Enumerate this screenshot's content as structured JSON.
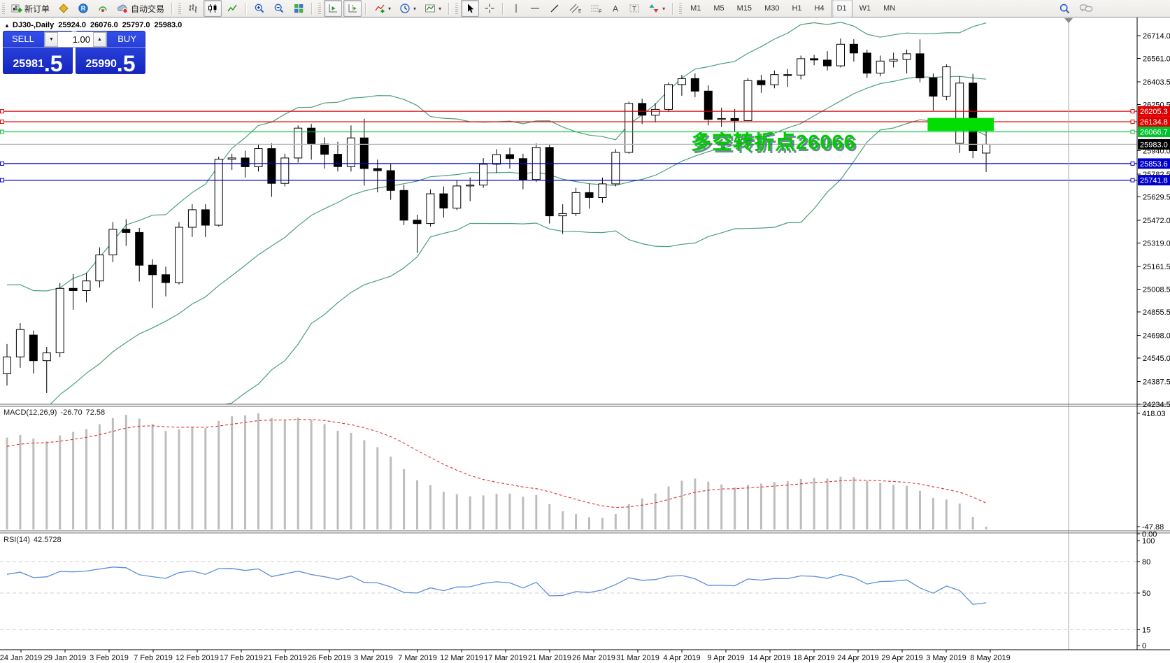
{
  "toolbar": {
    "new_order_label": "新订单",
    "autotrading_label": "自动交易",
    "timeframes": [
      "M1",
      "M5",
      "M15",
      "M30",
      "H1",
      "H4",
      "D1",
      "W1",
      "MN"
    ],
    "active_timeframe": "D1",
    "icon_names": [
      "new-order-icon",
      "quotes-icon",
      "community-icon",
      "signals-icon",
      "autotrading-icon",
      "bar-chart-icon",
      "candlestick-icon",
      "line-chart-icon",
      "zoom-in-icon",
      "zoom-out-icon",
      "tile-windows-icon",
      "auto-scroll-icon",
      "chart-shift-icon",
      "indicators-icon",
      "periods-icon",
      "templates-icon",
      "cursor-icon",
      "crosshair-icon",
      "vertical-line-icon",
      "horizontal-line-icon",
      "trendline-icon",
      "channel-icon",
      "fibonacci-icon",
      "text-icon",
      "label-icon",
      "shapes-icon",
      "search-icon",
      "chat-icon"
    ]
  },
  "header": {
    "symbol_period": "DJ30-,Daily",
    "open": "25924.0",
    "high": "26076.0",
    "low": "25797.0",
    "close": "25983.0"
  },
  "trade_panel": {
    "sell_label": "SELL",
    "buy_label": "BUY",
    "volume": "1.00",
    "sell_price": "25981",
    "sell_price_frac": ".5",
    "buy_price": "25990",
    "buy_price_frac": ".5"
  },
  "annotation": {
    "text": "多空转折点26066",
    "color": "#00cc00"
  },
  "price_axis": {
    "ticks": [
      "26714.0",
      "26561.0",
      "26403.5",
      "26250.5",
      "25940.0",
      "25782.5",
      "25629.5",
      "25472.0",
      "25319.0",
      "25161.5",
      "25008.5",
      "24855.5",
      "24698.0",
      "24545.0",
      "24387.5",
      "24234.5"
    ],
    "badges": [
      {
        "value": "26205.3",
        "color": "#dd0000",
        "text": "#ffffff"
      },
      {
        "value": "26134.8",
        "color": "#dd0000",
        "text": "#ffffff"
      },
      {
        "value": "26066.7",
        "color": "#00c22d",
        "text": "#ffffff"
      },
      {
        "value": "25983.0",
        "color": "#000000",
        "text": "#ffffff"
      },
      {
        "value": "25853.6",
        "color": "#0000cc",
        "text": "#ffffff"
      },
      {
        "value": "25741.8",
        "color": "#0000cc",
        "text": "#ffffff"
      }
    ]
  },
  "levels": [
    {
      "price": 26205.3,
      "color": "#dd0000",
      "style": "solid"
    },
    {
      "price": 26134.8,
      "color": "#dd0000",
      "style": "solid"
    },
    {
      "price": 26066.7,
      "color": "#00c22d",
      "style": "solid"
    },
    {
      "price": 25983.0,
      "color": "#b8b8b8",
      "style": "bid"
    },
    {
      "price": 25853.6,
      "color": "#0000cc",
      "style": "solid"
    },
    {
      "price": 25741.8,
      "color": "#0000cc",
      "style": "solid"
    }
  ],
  "highlight": {
    "price_top": 26160,
    "price_bottom": 26073,
    "from_bar": 70,
    "to_bar": 74,
    "color": "#00dd00"
  },
  "indicators": {
    "macd": {
      "label": "MACD(12,26,9)",
      "value": "-26.70",
      "signal_value": "72.58",
      "axis_labels": [
        "418.03",
        "0.00",
        "-47.88"
      ],
      "histogram_color": "#bdbdbd",
      "signal_color": "#e03030"
    },
    "rsi": {
      "label": "RSI(14)",
      "value": "42.5728",
      "axis_labels": [
        "100",
        "80",
        "50",
        "15",
        "0"
      ],
      "levels": [
        80,
        50,
        15
      ],
      "line_color": "#5a8edc"
    }
  },
  "date_axis": [
    "24 Jan 2019",
    "29 Jan 2019",
    "3 Feb 2019",
    "7 Feb 2019",
    "12 Feb 2019",
    "17 Feb 2019",
    "21 Feb 2019",
    "26 Feb 2019",
    "3 Mar 2019",
    "7 Mar 2019",
    "12 Mar 2019",
    "17 Mar 2019",
    "21 Mar 2019",
    "26 Mar 2019",
    "31 Mar 2019",
    "4 Apr 2019",
    "9 Apr 2019",
    "14 Apr 2019",
    "18 Apr 2019",
    "24 Apr 2019",
    "29 Apr 2019",
    "3 May 2019",
    "8 May 2019"
  ],
  "chart_data": {
    "type": "candlestick",
    "symbol": "DJ30",
    "period": "Daily",
    "y_axis": {
      "min": 24180,
      "max": 26780
    },
    "bollinger": {
      "period": 20,
      "deviation": 2,
      "color": "#4aa077"
    },
    "dates": [
      "24 Jan",
      "25 Jan",
      "28 Jan",
      "29 Jan",
      "30 Jan",
      "31 Jan",
      "1 Feb",
      "4 Feb",
      "5 Feb",
      "6 Feb",
      "7 Feb",
      "8 Feb",
      "11 Feb",
      "12 Feb",
      "13 Feb",
      "14 Feb",
      "15 Feb",
      "18 Feb",
      "19 Feb",
      "20 Feb",
      "21 Feb",
      "22 Feb",
      "25 Feb",
      "26 Feb",
      "27 Feb",
      "28 Feb",
      "1 Mar",
      "4 Mar",
      "5 Mar",
      "6 Mar",
      "7 Mar",
      "8 Mar",
      "11 Mar",
      "12 Mar",
      "13 Mar",
      "14 Mar",
      "15 Mar",
      "18 Mar",
      "19 Mar",
      "20 Mar",
      "21 Mar",
      "22 Mar",
      "25 Mar",
      "26 Mar",
      "27 Mar",
      "28 Mar",
      "29 Mar",
      "1 Apr",
      "2 Apr",
      "3 Apr",
      "4 Apr",
      "5 Apr",
      "8 Apr",
      "9 Apr",
      "10 Apr",
      "11 Apr",
      "12 Apr",
      "15 Apr",
      "16 Apr",
      "17 Apr",
      "18 Apr",
      "19 Apr",
      "22 Apr",
      "23 Apr",
      "24 Apr",
      "25 Apr",
      "26 Apr",
      "29 Apr",
      "30 Apr",
      "1 May",
      "2 May",
      "3 May",
      "6 May",
      "7 May",
      "8 May"
    ],
    "ohlc": [
      [
        24440,
        24640,
        24360,
        24553
      ],
      [
        24553,
        24780,
        24480,
        24737
      ],
      [
        24700,
        24730,
        24440,
        24528
      ],
      [
        24528,
        24620,
        24310,
        24580
      ],
      [
        24580,
        25050,
        24550,
        25014
      ],
      [
        25014,
        25110,
        24870,
        24999
      ],
      [
        24999,
        25120,
        24920,
        25064
      ],
      [
        25064,
        25290,
        25020,
        25239
      ],
      [
        25239,
        25460,
        25190,
        25411
      ],
      [
        25411,
        25480,
        25300,
        25390
      ],
      [
        25390,
        25420,
        25060,
        25170
      ],
      [
        25170,
        25210,
        24883,
        25106
      ],
      [
        25106,
        25160,
        24960,
        25053
      ],
      [
        25053,
        25460,
        25040,
        25425
      ],
      [
        25425,
        25580,
        25360,
        25543
      ],
      [
        25543,
        25580,
        25360,
        25439
      ],
      [
        25439,
        25900,
        25430,
        25883
      ],
      [
        25883,
        25920,
        25810,
        25891
      ],
      [
        25891,
        25940,
        25760,
        25832
      ],
      [
        25832,
        25980,
        25800,
        25954
      ],
      [
        25954,
        25990,
        25630,
        25720
      ],
      [
        25720,
        25920,
        25700,
        25891
      ],
      [
        25891,
        26110,
        25860,
        26092
      ],
      [
        26092,
        26120,
        25880,
        25985
      ],
      [
        25985,
        26030,
        25820,
        25916
      ],
      [
        25916,
        26000,
        25800,
        25833
      ],
      [
        25833,
        26110,
        25800,
        26026
      ],
      [
        26026,
        26155,
        25705,
        25820
      ],
      [
        25820,
        25880,
        25660,
        25806
      ],
      [
        25806,
        25850,
        25610,
        25673
      ],
      [
        25673,
        25710,
        25440,
        25473
      ],
      [
        25473,
        25510,
        25252,
        25450
      ],
      [
        25450,
        25680,
        25430,
        25650
      ],
      [
        25650,
        25700,
        25490,
        25554
      ],
      [
        25554,
        25740,
        25540,
        25703
      ],
      [
        25703,
        25760,
        25600,
        25709
      ],
      [
        25709,
        25890,
        25690,
        25849
      ],
      [
        25849,
        25950,
        25790,
        25914
      ],
      [
        25914,
        25960,
        25820,
        25887
      ],
      [
        25887,
        25920,
        25680,
        25746
      ],
      [
        25746,
        25990,
        25730,
        25962
      ],
      [
        25962,
        25980,
        25450,
        25502
      ],
      [
        25502,
        25580,
        25380,
        25517
      ],
      [
        25517,
        25690,
        25500,
        25658
      ],
      [
        25658,
        25720,
        25550,
        25625
      ],
      [
        25625,
        25760,
        25590,
        25717
      ],
      [
        25717,
        25950,
        25700,
        25929
      ],
      [
        25929,
        26270,
        25920,
        26258
      ],
      [
        26258,
        26290,
        26120,
        26179
      ],
      [
        26179,
        26260,
        26130,
        26218
      ],
      [
        26218,
        26400,
        26200,
        26385
      ],
      [
        26385,
        26450,
        26310,
        26425
      ],
      [
        26425,
        26460,
        26300,
        26341
      ],
      [
        26341,
        26380,
        26110,
        26151
      ],
      [
        26151,
        26230,
        26100,
        26157
      ],
      [
        26157,
        26220,
        26070,
        26143
      ],
      [
        26143,
        26430,
        26140,
        26412
      ],
      [
        26412,
        26450,
        26330,
        26384
      ],
      [
        26384,
        26480,
        26360,
        26452
      ],
      [
        26452,
        26490,
        26370,
        26449
      ],
      [
        26449,
        26580,
        26420,
        26559
      ],
      [
        26559,
        26585,
        26515,
        26550
      ],
      [
        26550,
        26610,
        26480,
        26511
      ],
      [
        26511,
        26695,
        26500,
        26656
      ],
      [
        26656,
        26690,
        26540,
        26597
      ],
      [
        26597,
        26620,
        26430,
        26462
      ],
      [
        26462,
        26580,
        26440,
        26543
      ],
      [
        26543,
        26600,
        26500,
        26554
      ],
      [
        26554,
        26620,
        26460,
        26592
      ],
      [
        26592,
        26689,
        26400,
        26430
      ],
      [
        26430,
        26460,
        26210,
        26307
      ],
      [
        26307,
        26521,
        26280,
        26504
      ],
      [
        25990,
        26440,
        25925,
        26395
      ],
      [
        26395,
        26457,
        25890,
        25940
      ],
      [
        25924,
        26076,
        25797,
        25983
      ]
    ]
  }
}
